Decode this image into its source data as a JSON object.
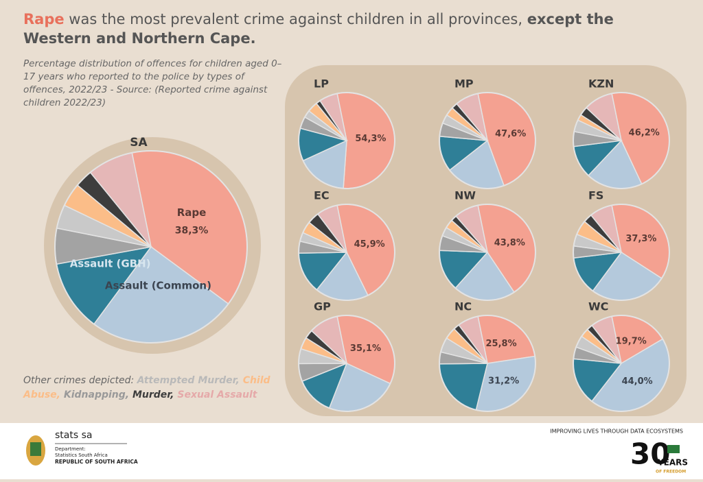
{
  "title_parts": [
    "Rape",
    " was the most prevalent crime against children in all provinces, ",
    "except the Western and Northern Cape."
  ],
  "subtitle": "Percentage distribution of offences for children aged 0–17 years who reported to the police by types of offences, 2022/23 - Source: (Reported crime against children 2022/23)",
  "note_label": "Other crimes depicted:",
  "segments": [
    {
      "name": "Rape",
      "color": "#f4a191"
    },
    {
      "name": "Assault (Common)",
      "color": "#b4c9dc"
    },
    {
      "name": "Assault (GBH)",
      "color": "#2f7f97"
    },
    {
      "name": "Attempted Murder",
      "color": "#a3a3a3"
    },
    {
      "name": "Kidnapping",
      "color": "#c9c9c9"
    },
    {
      "name": "Child Abuse",
      "color": "#fbbd88"
    },
    {
      "name": "Murder",
      "color": "#3d3d3d"
    },
    {
      "name": "Sexual Assault",
      "color": "#e5b7b7"
    }
  ],
  "chart_data": [
    {
      "type": "pie",
      "title": "SA",
      "values": [
        38.3,
        25,
        12,
        6,
        4,
        4,
        3,
        7.7
      ],
      "value_labels": [
        "38,3%",
        null,
        null,
        null,
        null,
        null,
        null,
        null
      ]
    },
    {
      "type": "pie",
      "title": "LP",
      "values": [
        54.3,
        17,
        11,
        4,
        2.5,
        3.5,
        1.5,
        6.2
      ],
      "value_labels": [
        "54,3%",
        null,
        null,
        null,
        null,
        null,
        null,
        null
      ]
    },
    {
      "type": "pie",
      "title": "MP",
      "values": [
        47.6,
        20,
        12,
        4.5,
        3,
        3,
        2,
        7.9
      ],
      "value_labels": [
        "47,6%",
        null,
        null,
        null,
        null,
        null,
        null,
        null
      ]
    },
    {
      "type": "pie",
      "title": "KZN",
      "values": [
        46.2,
        19,
        11,
        5,
        4,
        2,
        3,
        9.8
      ],
      "value_labels": [
        "46,2%",
        null,
        null,
        null,
        null,
        null,
        null,
        null
      ]
    },
    {
      "type": "pie",
      "title": "EC",
      "values": [
        45.9,
        18,
        14,
        4,
        3,
        4,
        4,
        7.1
      ],
      "value_labels": [
        "45,9%",
        null,
        null,
        null,
        null,
        null,
        null,
        null
      ]
    },
    {
      "type": "pie",
      "title": "NW",
      "values": [
        43.8,
        21,
        14,
        5,
        3,
        3,
        2,
        8.2
      ],
      "value_labels": [
        "43,8%",
        null,
        null,
        null,
        null,
        null,
        null,
        null
      ]
    },
    {
      "type": "pie",
      "title": "FS",
      "values": [
        37.3,
        26,
        13,
        4,
        4,
        5,
        3,
        7.7
      ],
      "value_labels": [
        "37,3%",
        null,
        null,
        null,
        null,
        null,
        null,
        null
      ]
    },
    {
      "type": "pie",
      "title": "GP",
      "values": [
        35.1,
        24,
        13,
        6,
        5,
        4,
        3,
        9.9
      ],
      "value_labels": [
        "35,1%",
        null,
        null,
        null,
        null,
        null,
        null,
        null
      ]
    },
    {
      "type": "pie",
      "title": "NC",
      "values": [
        25.8,
        31.2,
        21,
        4,
        5,
        4,
        2,
        7
      ],
      "value_labels": [
        "25,8%",
        "31,2%",
        null,
        null,
        null,
        null,
        null,
        null
      ]
    },
    {
      "type": "pie",
      "title": "WC",
      "values": [
        19.7,
        44.0,
        16,
        4,
        4,
        3,
        2,
        7.3
      ],
      "value_labels": [
        "19,7%",
        "44,0%",
        null,
        null,
        null,
        null,
        null,
        null
      ]
    }
  ],
  "footer": {
    "brand": "stats sa",
    "dept": "Department:",
    "org": "Statistics South Africa",
    "country": "REPUBLIC OF SOUTH AFRICA",
    "slogan": "IMPROVING LIVES THROUGH DATA ECOSYSTEMS",
    "years_num": "30",
    "years": "YEARS",
    "freedom": "OF FREEDOM"
  }
}
